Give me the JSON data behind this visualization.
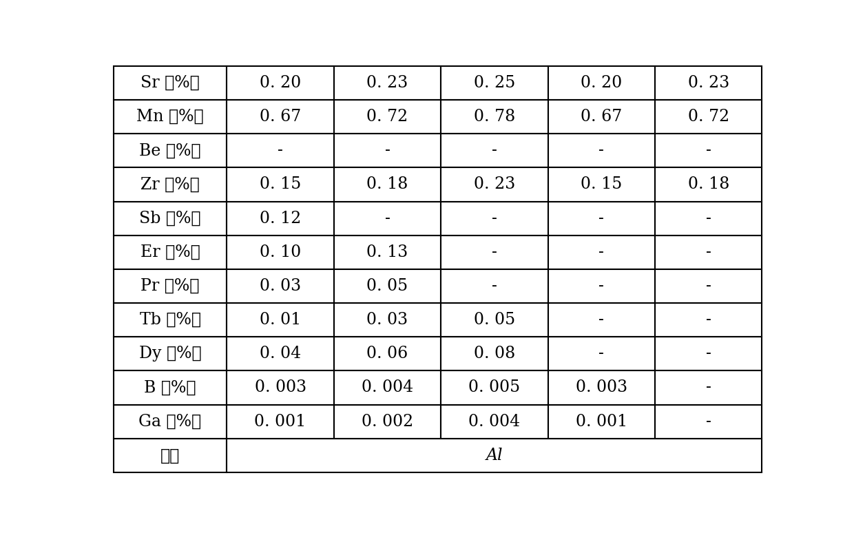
{
  "rows": [
    [
      "Sr （%）",
      "0. 20",
      "0. 23",
      "0. 25",
      "0. 20",
      "0. 23"
    ],
    [
      "Mn （%）",
      "0. 67",
      "0. 72",
      "0. 78",
      "0. 67",
      "0. 72"
    ],
    [
      "Be （%）",
      "-",
      "-",
      "-",
      "-",
      "-"
    ],
    [
      "Zr （%）",
      "0. 15",
      "0. 18",
      "0. 23",
      "0. 15",
      "0. 18"
    ],
    [
      "Sb （%）",
      "0. 12",
      "-",
      "-",
      "-",
      "-"
    ],
    [
      "Er （%）",
      "0. 10",
      "0. 13",
      "-",
      "-",
      "-"
    ],
    [
      "Pr （%）",
      "0. 03",
      "0. 05",
      "-",
      "-",
      "-"
    ],
    [
      "Tb （%）",
      "0. 01",
      "0. 03",
      "0. 05",
      "-",
      "-"
    ],
    [
      "Dy （%）",
      "0. 04",
      "0. 06",
      "0. 08",
      "-",
      "-"
    ],
    [
      "B （%）",
      "0. 003",
      "0. 004",
      "0. 005",
      "0. 003",
      "-"
    ],
    [
      "Ga （%）",
      "0. 001",
      "0. 002",
      "0. 004",
      "0. 001",
      "-"
    ],
    [
      "余量",
      "Al",
      "",
      "",
      "",
      ""
    ]
  ],
  "n_rows": 12,
  "n_cols": 6,
  "bg_color": "#ffffff",
  "line_color": "#000000",
  "text_color": "#000000",
  "font_size": 17,
  "last_row_font_size": 17
}
